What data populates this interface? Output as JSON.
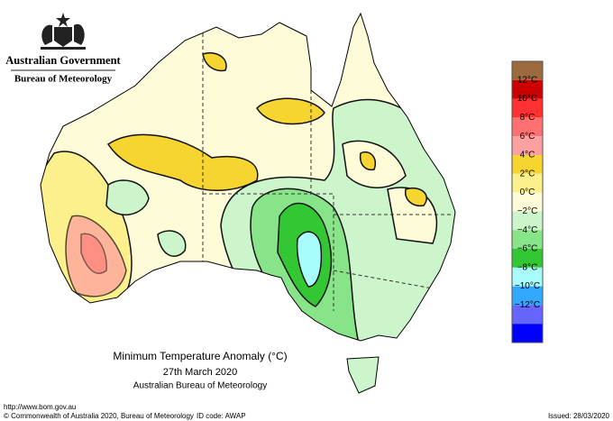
{
  "header": {
    "government": "Australian Government",
    "bureau": "Bureau of Meteorology"
  },
  "map": {
    "title": "Minimum Temperature Anomaly (°C)",
    "date": "27th March 2020",
    "source": "Australian Bureau of Meteorology"
  },
  "legend": {
    "labels": [
      "12°C",
      "10°C",
      "8°C",
      "6°C",
      "4°C",
      "2°C",
      "0°C",
      "−2°C",
      "−4°C",
      "−6°C",
      "−8°C",
      "−10°C",
      "−12°C"
    ],
    "colors": [
      "#9c6a3e",
      "#cc0000",
      "#ff3030",
      "#ff7070",
      "#ffa0a0",
      "#f7d530",
      "#fbf08c",
      "#fefbd8",
      "#ccf5cc",
      "#88e488",
      "#33c833",
      "#a8fcfc",
      "#33a8ff",
      "#6666ff",
      "#0000ff"
    ]
  },
  "footer": {
    "url": "http://www.bom.gov.au",
    "copyright": "© Commonwealth of Australia 2020, Bureau of Meteorology",
    "id_code": "ID code: AWAP",
    "issued": "Issued: 28/03/2020"
  }
}
